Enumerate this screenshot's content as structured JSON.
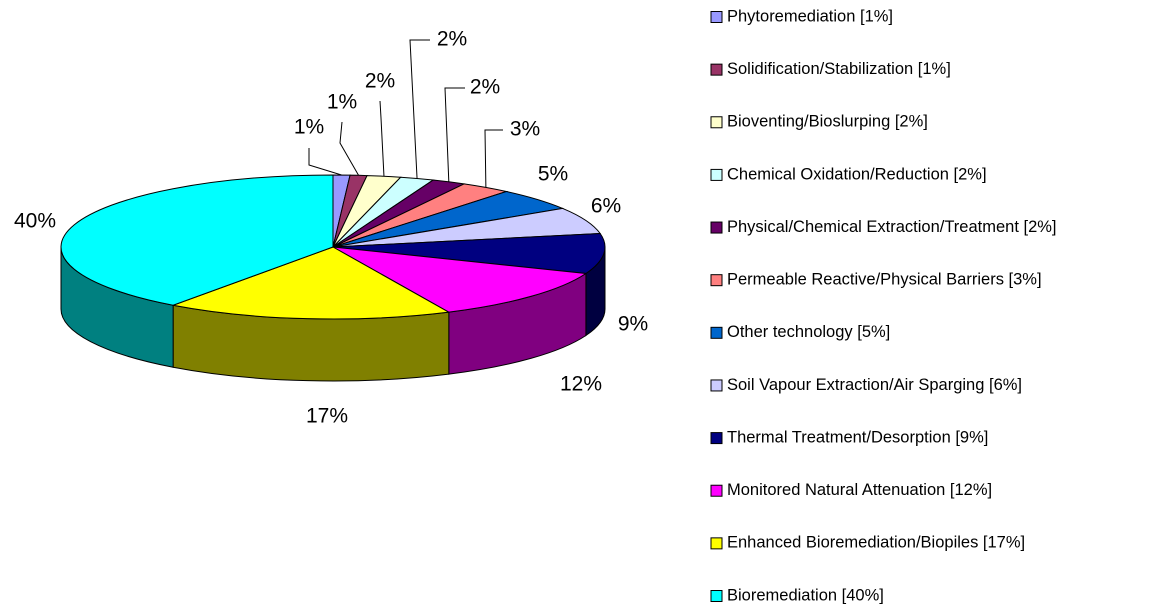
{
  "chart_data": {
    "type": "pie3d",
    "categories": [
      "Phytoremediation [1%]",
      "Solidification/Stabilization [1%]",
      "Bioventing/Bioslurping [2%]",
      "Chemical Oxidation/Reduction [2%]",
      "Physical/Chemical Extraction/Treatment [2%]",
      "Permeable Reactive/Physical Barriers [3%]",
      "Other technology [5%]",
      "Soil Vapour Extraction/Air Sparging [6%]",
      "Thermal Treatment/Desorption [9%]",
      "Monitored Natural Attenuation [12%]",
      "Enhanced Bioremediation/Biopiles [17%]",
      "Bioremediation [40%]"
    ],
    "values": [
      1,
      1,
      2,
      2,
      2,
      3,
      5,
      6,
      9,
      12,
      17,
      40
    ],
    "value_labels": [
      "1%",
      "1%",
      "2%",
      "2%",
      "2%",
      "3%",
      "5%",
      "6%",
      "9%",
      "12%",
      "17%",
      "40%"
    ],
    "colors": [
      "#9999ff",
      "#993366",
      "#ffffcc",
      "#ccffff",
      "#660066",
      "#ff8080",
      "#0066cc",
      "#ccccff",
      "#000080",
      "#ff00ff",
      "#ffff00",
      "#00ffff"
    ],
    "legend": "right"
  }
}
